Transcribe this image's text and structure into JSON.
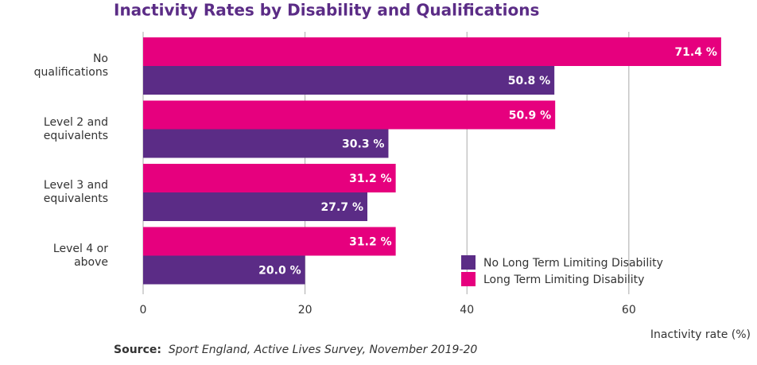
{
  "chart_data": {
    "type": "hbar",
    "title": "Inactivity Rates by Disability and Qualifications",
    "categories": [
      "No qualifications",
      "Level 2 and equivalents",
      "Level 3 and equivalents",
      "Level 4 or above"
    ],
    "series": [
      {
        "name": "No Long Term Limiting Disability",
        "color": "#5b2c86",
        "values": [
          50.8,
          30.3,
          27.7,
          20.0
        ],
        "value_labels": [
          "50.8 %",
          "30.3 %",
          "27.7 %",
          "20.0 %"
        ]
      },
      {
        "name": "Long Term Limiting Disability",
        "color": "#e6007e",
        "values": [
          71.4,
          50.9,
          31.2,
          31.2
        ],
        "value_labels": [
          "71.4 %",
          "50.9 %",
          "31.2 %",
          "31.2 %"
        ]
      }
    ],
    "xlim": [
      0,
      72
    ],
    "xticks": [
      0,
      20,
      40,
      60
    ],
    "grid": true,
    "xlabel": "Inactivity rate (%)",
    "legend": "lower-right"
  },
  "source": {
    "label": "Source:",
    "text": "Sport England, Active Lives Survey, November 2019-20"
  }
}
